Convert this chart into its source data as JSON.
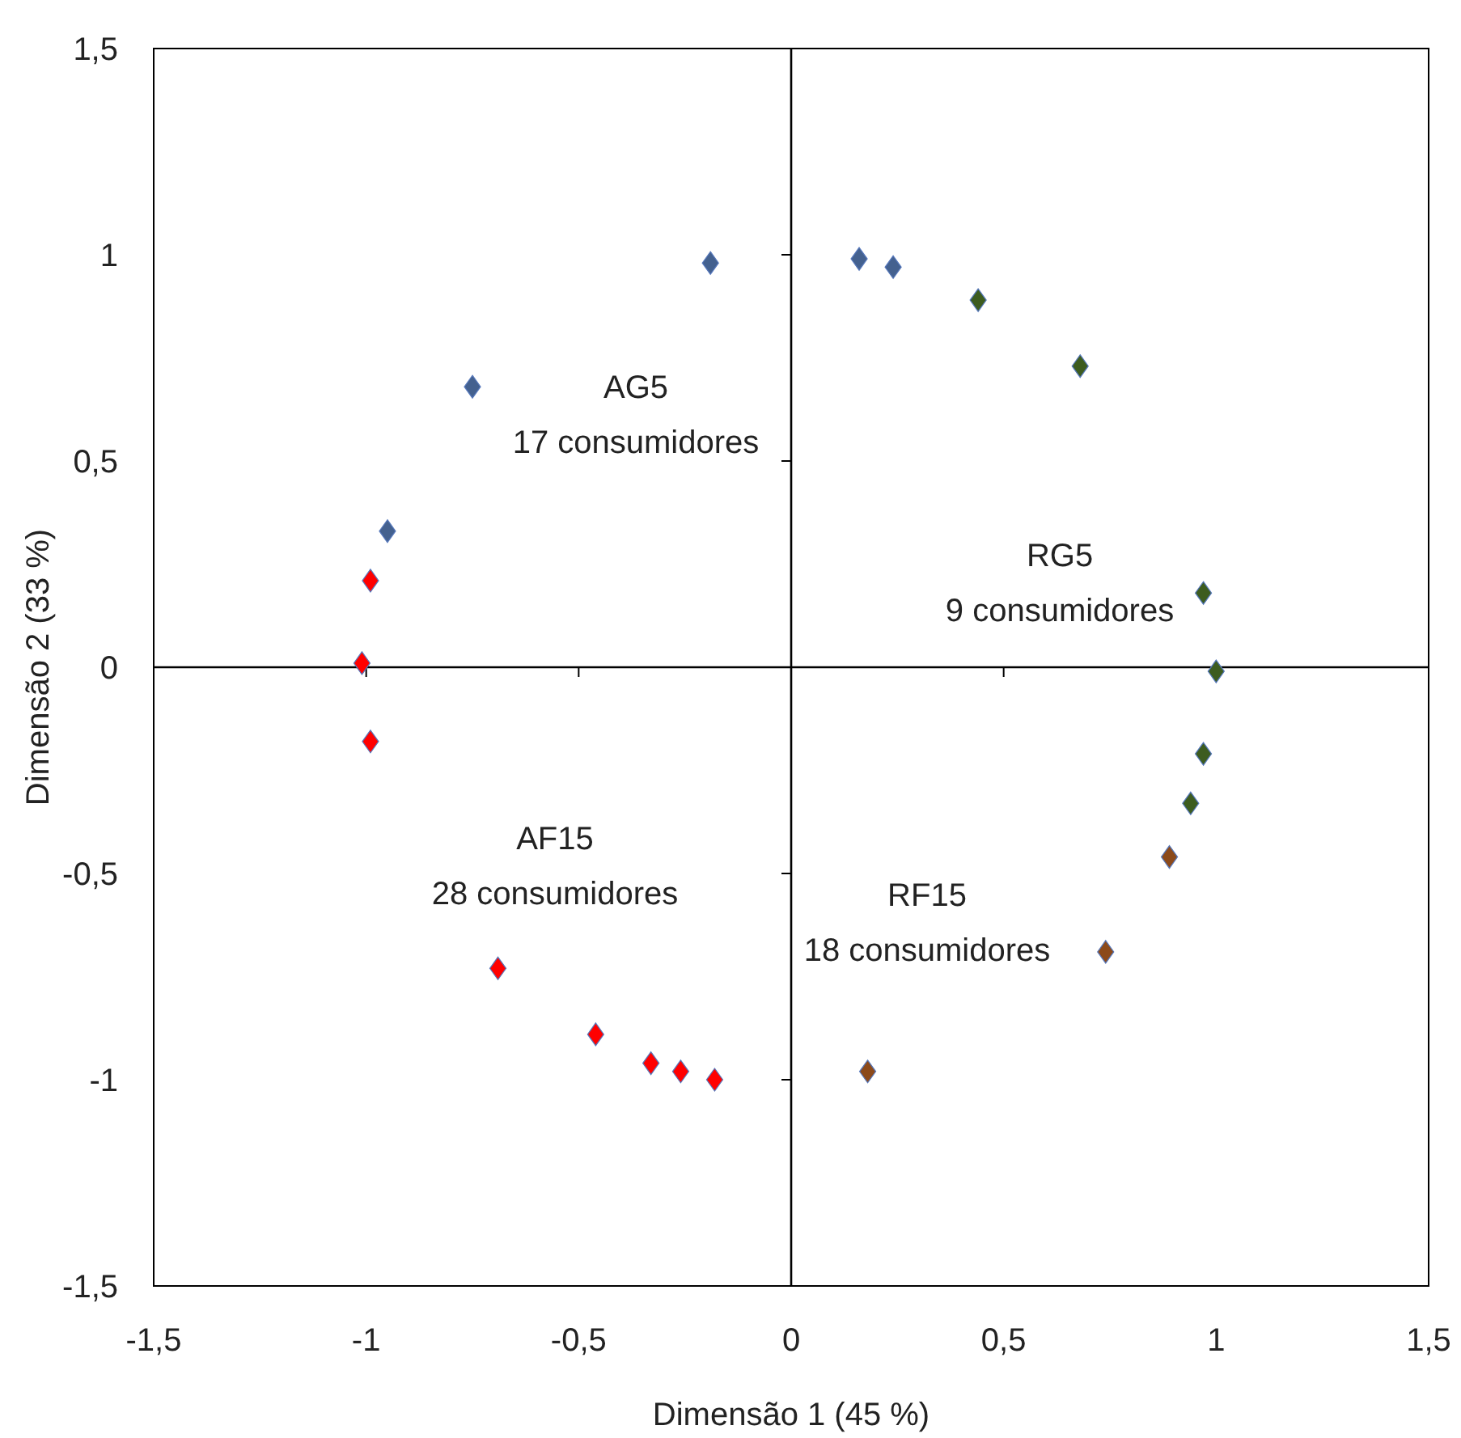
{
  "chart_data": {
    "type": "scatter",
    "xlabel": "Dimensão 1 (45 %)",
    "ylabel": "Dimensão 2 (33 %)",
    "marker": "diamond",
    "xlim": [
      -1.5,
      1.5
    ],
    "ylim": [
      -1.5,
      1.5
    ],
    "xticks": [
      {
        "value": -1.5,
        "label": "-1,5"
      },
      -1,
      {
        "value": -0.5,
        "label": "-0,5"
      },
      0,
      {
        "value": 0.5,
        "label": "0,5"
      },
      1,
      {
        "value": 1.5,
        "label": "1,5"
      }
    ],
    "yticks": [
      {
        "value": -1.5,
        "label": "-1,5"
      },
      -1,
      {
        "value": -0.5,
        "label": "-0,5"
      },
      0,
      {
        "value": 0.5,
        "label": "0,5"
      },
      1,
      {
        "value": 1.5,
        "label": "1,5"
      }
    ],
    "series": [
      {
        "color": "#44618f",
        "x": [
          -0.19,
          -0.75,
          -0.95,
          0.16,
          0.24
        ],
        "values": [
          0.98,
          0.68,
          0.33,
          0.99,
          0.97
        ]
      },
      {
        "color": "#3d5c1f",
        "x": [
          0.44,
          0.68,
          0.97,
          1.0,
          0.97,
          0.94
        ],
        "values": [
          0.89,
          0.73,
          0.18,
          -0.01,
          -0.21,
          -0.33
        ]
      },
      {
        "color": "#8c4a1a",
        "x": [
          0.89,
          0.74,
          0.18
        ],
        "values": [
          -0.46,
          -0.69,
          -0.98
        ]
      },
      {
        "color": "#ff0000",
        "x": [
          -0.99,
          -1.01,
          -0.99,
          -0.69,
          -0.46,
          -0.33,
          -0.26,
          -0.18
        ],
        "values": [
          0.21,
          0.01,
          -0.18,
          -0.73,
          -0.89,
          -0.96,
          -0.98,
          -1.0
        ]
      }
    ],
    "annotations": [
      "AG5\n17 consumidores",
      "RG5\n9 consumidores",
      "AF15\n28 consumidores",
      "RF15\n18 consumidores"
    ]
  }
}
